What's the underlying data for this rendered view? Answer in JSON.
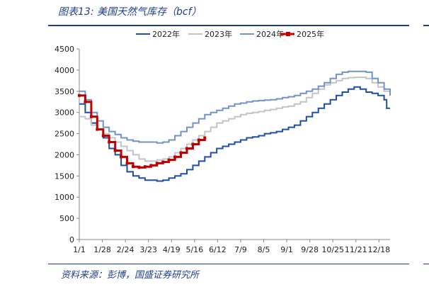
{
  "header": {
    "title": "图表13:  美国天然气库存（bcf）"
  },
  "footer": {
    "source": "资料来源：彭博，国盛证券研究所"
  },
  "colors": {
    "y2022": "#1f4ea6",
    "y2023": "#c4c4c4",
    "y2024": "#7393c7",
    "y2025": "#c00000",
    "rule": "#1f3f8a"
  },
  "chart_data": {
    "type": "line",
    "title": "美国天然气库存（bcf）",
    "xlabel": "",
    "ylabel": "",
    "ylim": [
      0,
      4500
    ],
    "yticks": [
      0,
      500,
      1000,
      1500,
      2000,
      2500,
      3000,
      3500,
      4000,
      4500
    ],
    "x_tick_labels": [
      "1/1",
      "1/28",
      "2/24",
      "3/23",
      "4/19",
      "5/16",
      "6/12",
      "7/9",
      "8/5",
      "9/1",
      "9/28",
      "10/25",
      "11/21",
      "12/18"
    ],
    "x_tick_days": [
      0,
      27,
      54,
      81,
      108,
      135,
      162,
      189,
      216,
      243,
      270,
      297,
      324,
      351
    ],
    "x_range_days": [
      0,
      364
    ],
    "legend_position": "top-center",
    "series": [
      {
        "name": "2022年",
        "color_key": "y2022",
        "points": [
          [
            0,
            3200
          ],
          [
            7,
            3000
          ],
          [
            14,
            2750
          ],
          [
            21,
            2600
          ],
          [
            28,
            2400
          ],
          [
            35,
            2150
          ],
          [
            42,
            2000
          ],
          [
            49,
            1750
          ],
          [
            56,
            1600
          ],
          [
            63,
            1500
          ],
          [
            70,
            1450
          ],
          [
            77,
            1400
          ],
          [
            84,
            1400
          ],
          [
            91,
            1380
          ],
          [
            98,
            1400
          ],
          [
            105,
            1450
          ],
          [
            112,
            1500
          ],
          [
            119,
            1550
          ],
          [
            126,
            1650
          ],
          [
            133,
            1750
          ],
          [
            140,
            1850
          ],
          [
            147,
            1950
          ],
          [
            154,
            2050
          ],
          [
            161,
            2150
          ],
          [
            168,
            2200
          ],
          [
            175,
            2250
          ],
          [
            182,
            2300
          ],
          [
            189,
            2350
          ],
          [
            196,
            2400
          ],
          [
            203,
            2420
          ],
          [
            210,
            2450
          ],
          [
            217,
            2500
          ],
          [
            224,
            2520
          ],
          [
            231,
            2550
          ],
          [
            238,
            2600
          ],
          [
            245,
            2650
          ],
          [
            252,
            2700
          ],
          [
            259,
            2800
          ],
          [
            266,
            2900
          ],
          [
            273,
            3000
          ],
          [
            280,
            3100
          ],
          [
            287,
            3200
          ],
          [
            294,
            3300
          ],
          [
            301,
            3400
          ],
          [
            308,
            3480
          ],
          [
            315,
            3550
          ],
          [
            322,
            3600
          ],
          [
            329,
            3550
          ],
          [
            336,
            3480
          ],
          [
            343,
            3450
          ],
          [
            350,
            3400
          ],
          [
            357,
            3300
          ],
          [
            360,
            3100
          ],
          [
            364,
            3100
          ]
        ]
      },
      {
        "name": "2023年",
        "color_key": "y2023",
        "points": [
          [
            0,
            2900
          ],
          [
            7,
            2850
          ],
          [
            14,
            2700
          ],
          [
            21,
            2600
          ],
          [
            28,
            2500
          ],
          [
            35,
            2400
          ],
          [
            42,
            2300
          ],
          [
            49,
            2200
          ],
          [
            56,
            2100
          ],
          [
            63,
            2000
          ],
          [
            70,
            1900
          ],
          [
            77,
            1850
          ],
          [
            84,
            1850
          ],
          [
            91,
            1880
          ],
          [
            98,
            1900
          ],
          [
            105,
            1950
          ],
          [
            112,
            2050
          ],
          [
            119,
            2150
          ],
          [
            126,
            2250
          ],
          [
            133,
            2350
          ],
          [
            140,
            2450
          ],
          [
            147,
            2550
          ],
          [
            154,
            2650
          ],
          [
            161,
            2750
          ],
          [
            168,
            2800
          ],
          [
            175,
            2850
          ],
          [
            182,
            2900
          ],
          [
            189,
            2950
          ],
          [
            196,
            2980
          ],
          [
            203,
            3000
          ],
          [
            210,
            3020
          ],
          [
            217,
            3050
          ],
          [
            224,
            3070
          ],
          [
            231,
            3100
          ],
          [
            238,
            3130
          ],
          [
            245,
            3150
          ],
          [
            252,
            3200
          ],
          [
            259,
            3250
          ],
          [
            266,
            3350
          ],
          [
            273,
            3450
          ],
          [
            280,
            3550
          ],
          [
            287,
            3650
          ],
          [
            294,
            3700
          ],
          [
            301,
            3750
          ],
          [
            308,
            3800
          ],
          [
            315,
            3820
          ],
          [
            322,
            3830
          ],
          [
            329,
            3830
          ],
          [
            336,
            3800
          ],
          [
            343,
            3700
          ],
          [
            350,
            3600
          ],
          [
            357,
            3500
          ],
          [
            364,
            3450
          ]
        ]
      },
      {
        "name": "2024年",
        "color_key": "y2024",
        "points": [
          [
            0,
            3500
          ],
          [
            7,
            3300
          ],
          [
            14,
            3000
          ],
          [
            21,
            2800
          ],
          [
            28,
            2650
          ],
          [
            35,
            2550
          ],
          [
            42,
            2480
          ],
          [
            49,
            2400
          ],
          [
            56,
            2350
          ],
          [
            63,
            2320
          ],
          [
            70,
            2300
          ],
          [
            77,
            2300
          ],
          [
            84,
            2300
          ],
          [
            91,
            2280
          ],
          [
            98,
            2300
          ],
          [
            105,
            2350
          ],
          [
            112,
            2450
          ],
          [
            119,
            2550
          ],
          [
            126,
            2650
          ],
          [
            133,
            2750
          ],
          [
            140,
            2850
          ],
          [
            147,
            2950
          ],
          [
            154,
            3000
          ],
          [
            161,
            3050
          ],
          [
            168,
            3100
          ],
          [
            175,
            3150
          ],
          [
            182,
            3200
          ],
          [
            189,
            3220
          ],
          [
            196,
            3250
          ],
          [
            203,
            3270
          ],
          [
            210,
            3280
          ],
          [
            217,
            3290
          ],
          [
            224,
            3300
          ],
          [
            231,
            3320
          ],
          [
            238,
            3350
          ],
          [
            245,
            3370
          ],
          [
            252,
            3400
          ],
          [
            259,
            3450
          ],
          [
            266,
            3500
          ],
          [
            273,
            3550
          ],
          [
            280,
            3620
          ],
          [
            287,
            3700
          ],
          [
            294,
            3800
          ],
          [
            301,
            3900
          ],
          [
            308,
            3950
          ],
          [
            315,
            3970
          ],
          [
            322,
            3970
          ],
          [
            329,
            3970
          ],
          [
            336,
            3950
          ],
          [
            343,
            3800
          ],
          [
            350,
            3700
          ],
          [
            357,
            3550
          ],
          [
            364,
            3400
          ]
        ]
      },
      {
        "name": "2025年",
        "color_key": "y2025",
        "points": [
          [
            0,
            3400
          ],
          [
            7,
            3250
          ],
          [
            14,
            2900
          ],
          [
            21,
            2600
          ],
          [
            28,
            2450
          ],
          [
            35,
            2300
          ],
          [
            42,
            2100
          ],
          [
            49,
            1950
          ],
          [
            56,
            1800
          ],
          [
            63,
            1720
          ],
          [
            70,
            1700
          ],
          [
            77,
            1720
          ],
          [
            84,
            1750
          ],
          [
            91,
            1800
          ],
          [
            98,
            1830
          ],
          [
            105,
            1880
          ],
          [
            112,
            1950
          ],
          [
            119,
            2050
          ],
          [
            126,
            2150
          ],
          [
            133,
            2250
          ],
          [
            140,
            2350
          ],
          [
            147,
            2400
          ]
        ]
      }
    ]
  }
}
